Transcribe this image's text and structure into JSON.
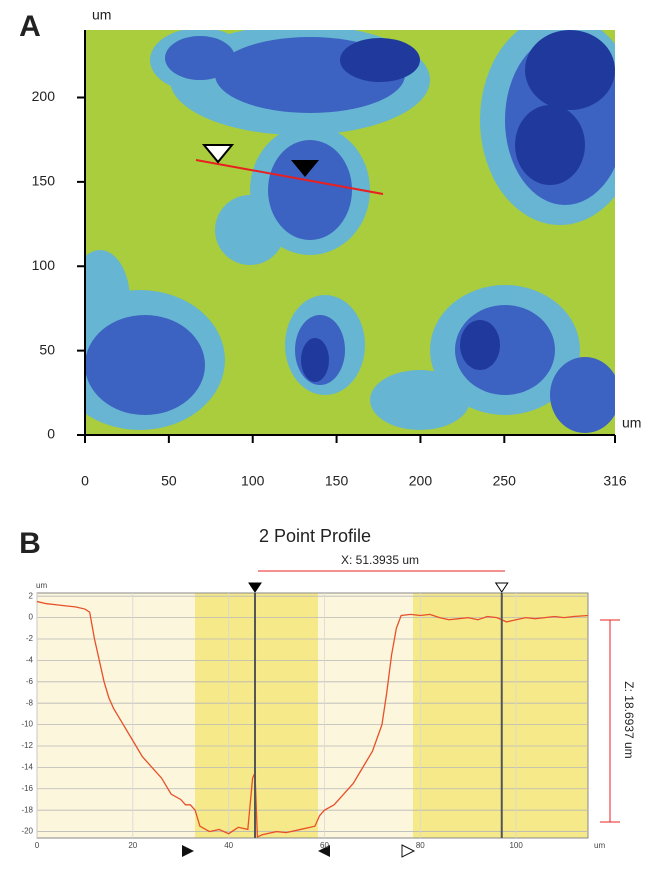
{
  "chart_data": [
    {
      "type": "heatmap",
      "label": "A",
      "x_unit": "um",
      "y_unit": "um",
      "xlim": [
        0,
        316
      ],
      "ylim": [
        0,
        240
      ],
      "xticks": [
        0,
        50,
        100,
        150,
        200,
        250,
        316
      ],
      "yticks": [
        0,
        50,
        100,
        150,
        200
      ]
    },
    {
      "type": "line",
      "label": "B",
      "title": "2 Point Profile",
      "x_unit": "um",
      "y_unit": "um",
      "xlim": [
        0,
        115
      ],
      "ylim": [
        -20.6,
        2.3
      ],
      "xticks": [
        0,
        20,
        40,
        60,
        80,
        100
      ],
      "yticks": [
        2,
        0,
        -2,
        -4,
        -6,
        -8,
        -10,
        -12,
        -14,
        -16,
        -18,
        -20
      ],
      "grid": true,
      "x": [
        0,
        2,
        4,
        6,
        8,
        10,
        11,
        12,
        13,
        14,
        15,
        16,
        18,
        20,
        22,
        24,
        26,
        28,
        30,
        31,
        32,
        33,
        34,
        36,
        38,
        40,
        42,
        44,
        45,
        45.5,
        46,
        47,
        50,
        52,
        55,
        58,
        59,
        60,
        62,
        64,
        66,
        68,
        70,
        72,
        73,
        74,
        75,
        76,
        78,
        80,
        82,
        84,
        86,
        88,
        90,
        92,
        94,
        96,
        98,
        100,
        102,
        104,
        106,
        108,
        110,
        112,
        115
      ],
      "series": [
        {
          "color": "#e8502a",
          "values": [
            1.5,
            1.3,
            1.2,
            1.1,
            1.0,
            0.8,
            0.5,
            -2,
            -4,
            -6,
            -7.5,
            -8.5,
            -10,
            -11.5,
            -13,
            -14,
            -15,
            -16.5,
            -17,
            -17.5,
            -17.5,
            -18,
            -19.5,
            -20,
            -19.8,
            -20.2,
            -19.6,
            -19.8,
            -15,
            -14.5,
            -20.5,
            -20.3,
            -20,
            -20.1,
            -19.8,
            -19.5,
            -18.5,
            -18,
            -17.5,
            -16.5,
            -15.5,
            -14,
            -12.5,
            -10,
            -7,
            -3.5,
            -1,
            0.2,
            0.3,
            0.2,
            0.3,
            0,
            -0.2,
            -0.1,
            0,
            -0.2,
            0.1,
            0,
            -0.4,
            -0.2,
            0,
            -0.1,
            0,
            0.1,
            0,
            0.1,
            0.2
          ]
        }
      ],
      "cursors": [
        45.5,
        97
      ],
      "annotations": [
        "X: 51.3935 um",
        "Z: 18.6937 um"
      ]
    }
  ]
}
